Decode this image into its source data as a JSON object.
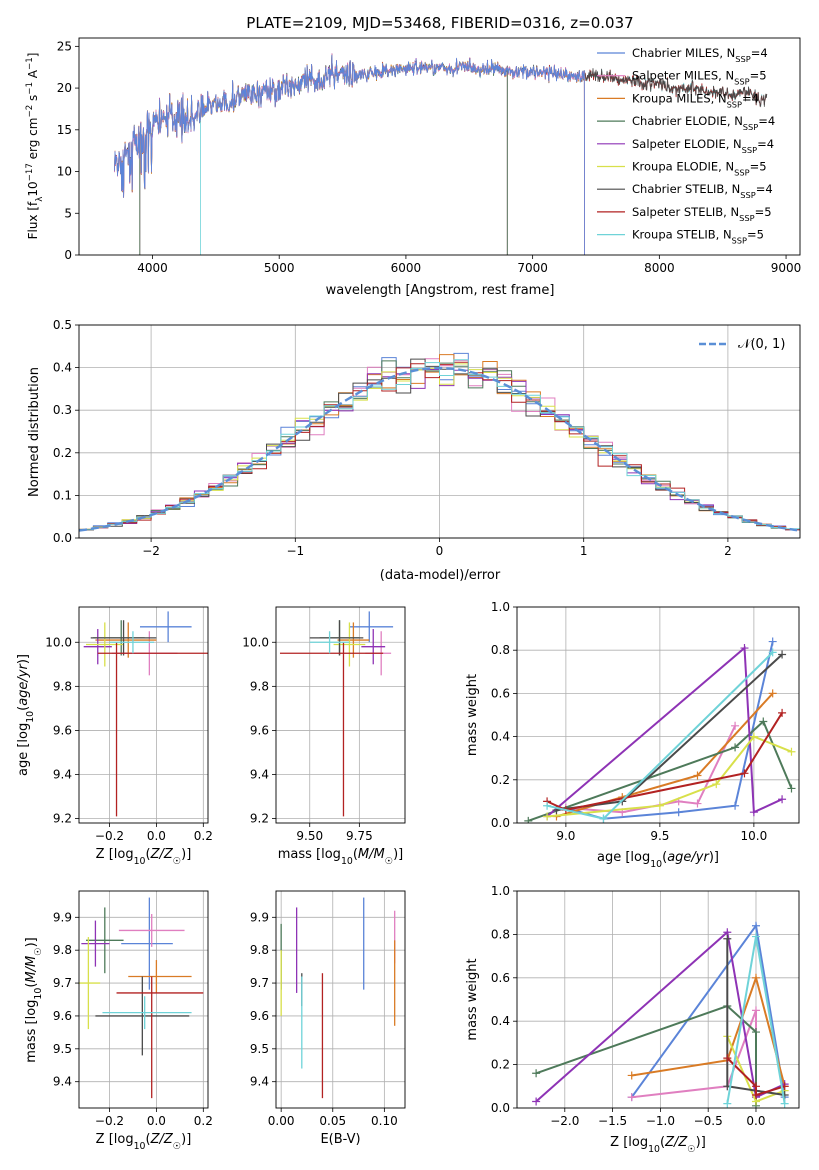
{
  "title": "PLATE=2109, MJD=53468, FIBERID=0316, z=0.037",
  "colors": {
    "Chabrier MILES": "#5b84d8",
    "Salpeter MILES": "#e07fc0",
    "Kroupa MILES": "#d97b25",
    "Chabrier ELODIE": "#4e7a5a",
    "Salpeter ELODIE": "#8e33b5",
    "Kroupa ELODIE": "#d8e04a",
    "Chabrier STELIB": "#4a4a4a",
    "Salpeter STELIB": "#b22222",
    "Kroupa STELIB": "#6fd3d8"
  },
  "chart_data": [
    {
      "id": "spectrum",
      "type": "line",
      "title": "PLATE=2109, MJD=53468, FIBERID=0316, z=0.037",
      "xlabel": "wavelength [Angstrom, rest frame]",
      "ylabel": "Flux [fλ10⁻¹⁷ erg cm⁻² s⁻¹ A⁻¹]",
      "xlim": [
        3420,
        9110
      ],
      "ylim": [
        0,
        26
      ],
      "xticks": [
        4000,
        5000,
        6000,
        7000,
        8000,
        9000
      ],
      "yticks": [
        0,
        5,
        10,
        15,
        20,
        25
      ],
      "legend_position": "upper-right",
      "legend": [
        "Chabrier MILES, N_SSP=4",
        "Salpeter MILES, N_SSP=5",
        "Kroupa MILES, N_SSP=4",
        "Chabrier ELODIE, N_SSP=4",
        "Salpeter ELODIE, N_SSP=4",
        "Kroupa ELODIE, N_SSP=5",
        "Chabrier STELIB, N_SSP=4",
        "Salpeter STELIB, N_SSP=5",
        "Kroupa STELIB, N_SSP=5"
      ],
      "data_series": {
        "name": "data",
        "x": [
          3700,
          3750,
          3800,
          3850,
          3900,
          3950,
          4000,
          4100,
          4200,
          4300,
          4400,
          4500,
          4600,
          4700,
          4800,
          4900,
          5000,
          5100,
          5200,
          5300,
          5400,
          5500,
          5600,
          5700,
          5800,
          5900,
          6000,
          6100,
          6200,
          6300,
          6400,
          6500,
          6600,
          6700,
          6800,
          6900,
          7000,
          7100,
          7200,
          7300,
          7400,
          7500,
          7600,
          7700,
          7800,
          7900,
          8000,
          8100,
          8200,
          8300,
          8400,
          8500,
          8600,
          8700,
          8800,
          8850
        ],
        "y": [
          10.5,
          11.5,
          12.0,
          13.0,
          13.5,
          14.0,
          15.5,
          16.5,
          16.8,
          16.0,
          17.5,
          18.0,
          18.3,
          19.0,
          19.0,
          19.5,
          20.0,
          20.5,
          20.5,
          21.0,
          21.5,
          22.0,
          21.5,
          21.8,
          22.0,
          22.0,
          22.3,
          22.5,
          22.5,
          22.3,
          22.5,
          22.5,
          22.0,
          22.5,
          22.0,
          22.0,
          22.0,
          21.8,
          21.5,
          21.5,
          21.5,
          21.5,
          21.3,
          21.0,
          21.0,
          20.5,
          20.5,
          20.0,
          20.0,
          20.0,
          19.5,
          19.5,
          19.0,
          19.5,
          18.5,
          19.0
        ]
      },
      "model_coverage_A": {
        "Chabrier MILES": [
          3700,
          7410
        ],
        "Salpeter MILES": [
          3700,
          7410
        ],
        "Kroupa MILES": [
          3700,
          7410
        ],
        "Chabrier ELODIE": [
          3900,
          6800
        ],
        "Salpeter ELODIE": [
          3900,
          6800
        ],
        "Kroupa ELODIE": [
          3900,
          6800
        ],
        "Chabrier STELIB": [
          3700,
          8850
        ],
        "Salpeter STELIB": [
          3700,
          8850
        ],
        "Kroupa STELIB": [
          4380,
          8850
        ]
      }
    },
    {
      "id": "residuals",
      "type": "histogram",
      "xlabel": "(data-model)/error",
      "ylabel": "Normed distribution",
      "xlim": [
        -2.5,
        2.5
      ],
      "ylim": [
        0,
        0.5
      ],
      "xticks": [
        -2,
        -1,
        0,
        1,
        2
      ],
      "yticks": [
        0.0,
        0.1,
        0.2,
        0.3,
        0.4,
        0.5
      ],
      "bin_width": 0.1,
      "legend": [
        "𝒩(0, 1)"
      ],
      "reference_curve": "standard normal pdf, dashed, #5b8fd6"
    },
    {
      "id": "age-vs-Z",
      "type": "errorbar",
      "xlabel": "Z [log10(Z/Z☉)]",
      "ylabel": "age  [log10(age/yr)]",
      "xlim": [
        -0.33,
        0.22
      ],
      "ylim": [
        9.18,
        10.16
      ],
      "xticks": [
        -0.2,
        0.0,
        0.2
      ],
      "yticks": [
        9.2,
        9.4,
        9.6,
        9.8,
        10.0
      ],
      "points": [
        {
          "model": "Chabrier MILES",
          "x": 0.05,
          "xerr": [
            0.12,
            0.1
          ],
          "y": 10.07,
          "yerr": [
            0.07,
            0.07
          ]
        },
        {
          "model": "Salpeter MILES",
          "x": -0.03,
          "xerr": [
            0.16,
            0.12
          ],
          "y": 9.95,
          "yerr": [
            0.1,
            0.1
          ]
        },
        {
          "model": "Kroupa MILES",
          "x": -0.12,
          "xerr": [
            0.14,
            0.12
          ],
          "y": 10.01,
          "yerr": [
            0.08,
            0.08
          ]
        },
        {
          "model": "Chabrier ELODIE",
          "x": -0.15,
          "xerr": [
            0.12,
            0.1
          ],
          "y": 10.02,
          "yerr": [
            0.08,
            0.08
          ]
        },
        {
          "model": "Salpeter ELODIE",
          "x": -0.25,
          "xerr": [
            0.06,
            0.06
          ],
          "y": 9.98,
          "yerr": [
            0.08,
            0.08
          ]
        },
        {
          "model": "Kroupa ELODIE",
          "x": -0.22,
          "xerr": [
            0.08,
            0.08
          ],
          "y": 9.99,
          "yerr": [
            0.1,
            0.1
          ]
        },
        {
          "model": "Chabrier STELIB",
          "x": -0.14,
          "xerr": [
            0.14,
            0.14
          ],
          "y": 10.02,
          "yerr": [
            0.08,
            0.08
          ]
        },
        {
          "model": "Salpeter STELIB",
          "x": -0.17,
          "xerr": [
            0.08,
            0.4
          ],
          "y": 9.95,
          "yerr": [
            0.74,
            0.05
          ]
        },
        {
          "model": "Kroupa STELIB",
          "x": -0.1,
          "xerr": [
            0.1,
            0.09
          ],
          "y": 10.0,
          "yerr": [
            0.05,
            0.05
          ]
        }
      ]
    },
    {
      "id": "age-vs-mass",
      "type": "errorbar",
      "xlabel": "mass [log10(M/M☉)]",
      "ylabel": "",
      "xlim": [
        9.33,
        9.98
      ],
      "ylim": [
        9.18,
        10.16
      ],
      "xticks": [
        9.5,
        9.75
      ],
      "xticklabels": [
        "9.50",
        "9.75"
      ],
      "yticks": [
        9.2,
        9.4,
        9.6,
        9.8,
        10.0
      ],
      "points": [
        {
          "model": "Chabrier MILES",
          "x": 9.8,
          "xerr": [
            0.1,
            0.12
          ],
          "y": 10.07,
          "yerr": [
            0.07,
            0.07
          ]
        },
        {
          "model": "Salpeter MILES",
          "x": 9.86,
          "xerr": [
            0.08,
            0.05
          ],
          "y": 9.95,
          "yerr": [
            0.1,
            0.1
          ]
        },
        {
          "model": "Kroupa MILES",
          "x": 9.72,
          "xerr": [
            0.08,
            0.08
          ],
          "y": 10.01,
          "yerr": [
            0.08,
            0.08
          ]
        },
        {
          "model": "Chabrier ELODIE",
          "x": 9.65,
          "xerr": [
            0.1,
            0.1
          ],
          "y": 10.02,
          "yerr": [
            0.08,
            0.08
          ]
        },
        {
          "model": "Salpeter ELODIE",
          "x": 9.82,
          "xerr": [
            0.06,
            0.06
          ],
          "y": 9.98,
          "yerr": [
            0.08,
            0.08
          ]
        },
        {
          "model": "Kroupa ELODIE",
          "x": 9.7,
          "xerr": [
            0.08,
            0.08
          ],
          "y": 9.99,
          "yerr": [
            0.1,
            0.1
          ]
        },
        {
          "model": "Chabrier STELIB",
          "x": 9.65,
          "xerr": [
            0.15,
            0.12
          ],
          "y": 10.02,
          "yerr": [
            0.08,
            0.08
          ]
        },
        {
          "model": "Salpeter STELIB",
          "x": 9.67,
          "xerr": [
            0.32,
            0.2
          ],
          "y": 9.95,
          "yerr": [
            0.74,
            0.05
          ]
        },
        {
          "model": "Kroupa STELIB",
          "x": 9.6,
          "xerr": [
            0.1,
            0.1
          ],
          "y": 10.0,
          "yerr": [
            0.05,
            0.05
          ]
        }
      ]
    },
    {
      "id": "weight-vs-age",
      "type": "line",
      "xlabel": "age  [log10(age/yr)]",
      "ylabel": "mass weight",
      "xlim": [
        8.74,
        10.24
      ],
      "ylim": [
        0,
        1.0
      ],
      "xticks": [
        9.0,
        9.5,
        10.0
      ],
      "yticks": [
        0.0,
        0.2,
        0.4,
        0.6,
        0.8,
        1.0
      ],
      "series": [
        {
          "name": "Chabrier MILES",
          "x": [
            9.0,
            9.2,
            9.6,
            9.9,
            10.1
          ],
          "y": [
            0.07,
            0.02,
            0.05,
            0.08,
            0.84
          ]
        },
        {
          "name": "Salpeter MILES",
          "x": [
            9.0,
            9.3,
            9.6,
            9.7,
            9.9
          ],
          "y": [
            0.07,
            0.05,
            0.1,
            0.09,
            0.45
          ]
        },
        {
          "name": "Kroupa MILES",
          "x": [
            8.95,
            9.3,
            9.7,
            10.1
          ],
          "y": [
            0.03,
            0.12,
            0.22,
            0.6
          ]
        },
        {
          "name": "Chabrier ELODIE",
          "x": [
            8.8,
            9.9,
            10.05,
            10.2
          ],
          "y": [
            0.01,
            0.35,
            0.47,
            0.16
          ]
        },
        {
          "name": "Salpeter ELODIE",
          "x": [
            8.9,
            9.95,
            10.0,
            10.15
          ],
          "y": [
            0.03,
            0.81,
            0.05,
            0.11
          ]
        },
        {
          "name": "Kroupa ELODIE",
          "x": [
            8.9,
            9.5,
            9.8,
            10.0,
            10.2
          ],
          "y": [
            0.03,
            0.08,
            0.18,
            0.4,
            0.33
          ]
        },
        {
          "name": "Chabrier STELIB",
          "x": [
            8.95,
            9.3,
            10.15
          ],
          "y": [
            0.06,
            0.1,
            0.78
          ]
        },
        {
          "name": "Salpeter STELIB",
          "x": [
            8.9,
            9.0,
            9.95,
            10.15
          ],
          "y": [
            0.1,
            0.06,
            0.23,
            0.51
          ]
        },
        {
          "name": "Kroupa STELIB",
          "x": [
            8.9,
            9.2,
            10.1
          ],
          "y": [
            0.08,
            0.02,
            0.79
          ]
        }
      ]
    },
    {
      "id": "mass-vs-Z",
      "type": "errorbar",
      "xlabel": "Z [log10(Z/Z☉)]",
      "ylabel": "mass [log10(M/M☉)]",
      "xlim": [
        -0.33,
        0.22
      ],
      "ylim": [
        9.32,
        9.98
      ],
      "xticks": [
        -0.2,
        0.0,
        0.2
      ],
      "yticks": [
        9.4,
        9.5,
        9.6,
        9.7,
        9.8,
        9.9
      ],
      "points": [
        {
          "model": "Chabrier MILES",
          "x": -0.03,
          "xerr": [
            0.12,
            0.1
          ],
          "y": 9.82,
          "yerr": [
            0.14,
            0.14
          ]
        },
        {
          "model": "Salpeter MILES",
          "x": -0.02,
          "xerr": [
            0.14,
            0.14
          ],
          "y": 9.86,
          "yerr": [
            0.05,
            0.05
          ]
        },
        {
          "model": "Kroupa MILES",
          "x": 0.0,
          "xerr": [
            0.12,
            0.15
          ],
          "y": 9.72,
          "yerr": [
            0.05,
            0.05
          ]
        },
        {
          "model": "Chabrier ELODIE",
          "x": -0.22,
          "xerr": [
            0.08,
            0.08
          ],
          "y": 9.83,
          "yerr": [
            0.1,
            0.1
          ]
        },
        {
          "model": "Salpeter ELODIE",
          "x": -0.26,
          "xerr": [
            0.06,
            0.06
          ],
          "y": 9.82,
          "yerr": [
            0.07,
            0.07
          ]
        },
        {
          "model": "Kroupa ELODIE",
          "x": -0.29,
          "xerr": [
            0.05,
            0.05
          ],
          "y": 9.7,
          "yerr": [
            0.14,
            0.14
          ]
        },
        {
          "model": "Chabrier STELIB",
          "x": -0.06,
          "xerr": [
            0.2,
            0.2
          ],
          "y": 9.6,
          "yerr": [
            0.12,
            0.12
          ]
        },
        {
          "model": "Salpeter STELIB",
          "x": -0.02,
          "xerr": [
            0.15,
            0.22
          ],
          "y": 9.67,
          "yerr": [
            0.32,
            0.05
          ]
        },
        {
          "model": "Kroupa STELIB",
          "x": -0.05,
          "xerr": [
            0.18,
            0.2
          ],
          "y": 9.61,
          "yerr": [
            0.05,
            0.05
          ]
        }
      ]
    },
    {
      "id": "mass-vs-EBV",
      "type": "errorbar",
      "xlabel": "E(B-V)",
      "ylabel": "",
      "xlim": [
        -0.005,
        0.12
      ],
      "ylim": [
        9.32,
        9.98
      ],
      "xticks": [
        0.0,
        0.05,
        0.1
      ],
      "xticklabels": [
        "0.00",
        "0.05",
        "0.10"
      ],
      "yticks": [
        9.4,
        9.5,
        9.6,
        9.7,
        9.8,
        9.9
      ],
      "points": [
        {
          "model": "Chabrier MILES",
          "x": 0.08,
          "y": 9.82,
          "yerr": [
            0.14,
            0.14
          ]
        },
        {
          "model": "Salpeter MILES",
          "x": 0.11,
          "y": 9.84,
          "yerr": [
            0.08,
            0.08
          ]
        },
        {
          "model": "Kroupa MILES",
          "x": 0.11,
          "y": 9.7,
          "yerr": [
            0.13,
            0.13
          ]
        },
        {
          "model": "Chabrier ELODIE",
          "x": 0.0,
          "y": 9.78,
          "yerr": [
            0.1,
            0.1
          ]
        },
        {
          "model": "Salpeter ELODIE",
          "x": 0.015,
          "y": 9.8,
          "yerr": [
            0.13,
            0.13
          ]
        },
        {
          "model": "Kroupa ELODIE",
          "x": 0.0,
          "y": 9.7,
          "yerr": [
            0.1,
            0.1
          ]
        },
        {
          "model": "Chabrier STELIB",
          "x": 0.02,
          "y": 9.68,
          "yerr": [
            0.05,
            0.05
          ]
        },
        {
          "model": "Salpeter STELIB",
          "x": 0.04,
          "y": 9.54,
          "yerr": [
            0.19,
            0.19
          ]
        },
        {
          "model": "Kroupa STELIB",
          "x": 0.02,
          "y": 9.58,
          "yerr": [
            0.14,
            0.14
          ]
        }
      ]
    },
    {
      "id": "weight-vs-Z",
      "type": "line",
      "xlabel": "Z [log10(Z/Z☉)]",
      "ylabel": "mass weight",
      "xlim": [
        -2.5,
        0.45
      ],
      "ylim": [
        0,
        1.0
      ],
      "xticks": [
        -2.0,
        -1.5,
        -1.0,
        -0.5,
        0.0
      ],
      "xticklabels": [
        "−2.0",
        "−1.5",
        "−1.0",
        "−0.5",
        "0.0"
      ],
      "yticks": [
        0.0,
        0.2,
        0.4,
        0.6,
        0.8,
        1.0
      ],
      "series": [
        {
          "name": "Chabrier MILES",
          "x": [
            -1.3,
            0.0,
            0.3
          ],
          "y": [
            0.05,
            0.84,
            0.05
          ]
        },
        {
          "name": "Salpeter MILES",
          "x": [
            -1.3,
            -0.3,
            0.0,
            0.0
          ],
          "y": [
            0.05,
            0.1,
            0.45,
            0.08
          ]
        },
        {
          "name": "Kroupa MILES",
          "x": [
            -1.3,
            -0.3,
            0.0,
            0.3
          ],
          "y": [
            0.15,
            0.22,
            0.6,
            0.1
          ]
        },
        {
          "name": "Chabrier ELODIE",
          "x": [
            -2.3,
            -0.3,
            0.0,
            0.0
          ],
          "y": [
            0.16,
            0.47,
            0.35,
            0.01
          ]
        },
        {
          "name": "Salpeter ELODIE",
          "x": [
            -2.3,
            -0.3,
            0.0,
            0.3
          ],
          "y": [
            0.03,
            0.81,
            0.05,
            0.11
          ]
        },
        {
          "name": "Kroupa ELODIE",
          "x": [
            -0.3,
            0.0,
            0.3
          ],
          "y": [
            0.33,
            0.03,
            0.08
          ]
        },
        {
          "name": "Chabrier STELIB",
          "x": [
            -0.3,
            -0.3,
            0.3
          ],
          "y": [
            0.78,
            0.1,
            0.06
          ]
        },
        {
          "name": "Salpeter STELIB",
          "x": [
            -0.3,
            0.0,
            0.0,
            0.3
          ],
          "y": [
            0.23,
            0.1,
            0.06,
            0.1
          ]
        },
        {
          "name": "Kroupa STELIB",
          "x": [
            -0.3,
            0.0,
            0.3
          ],
          "y": [
            0.02,
            0.79,
            0.02
          ]
        }
      ]
    }
  ]
}
